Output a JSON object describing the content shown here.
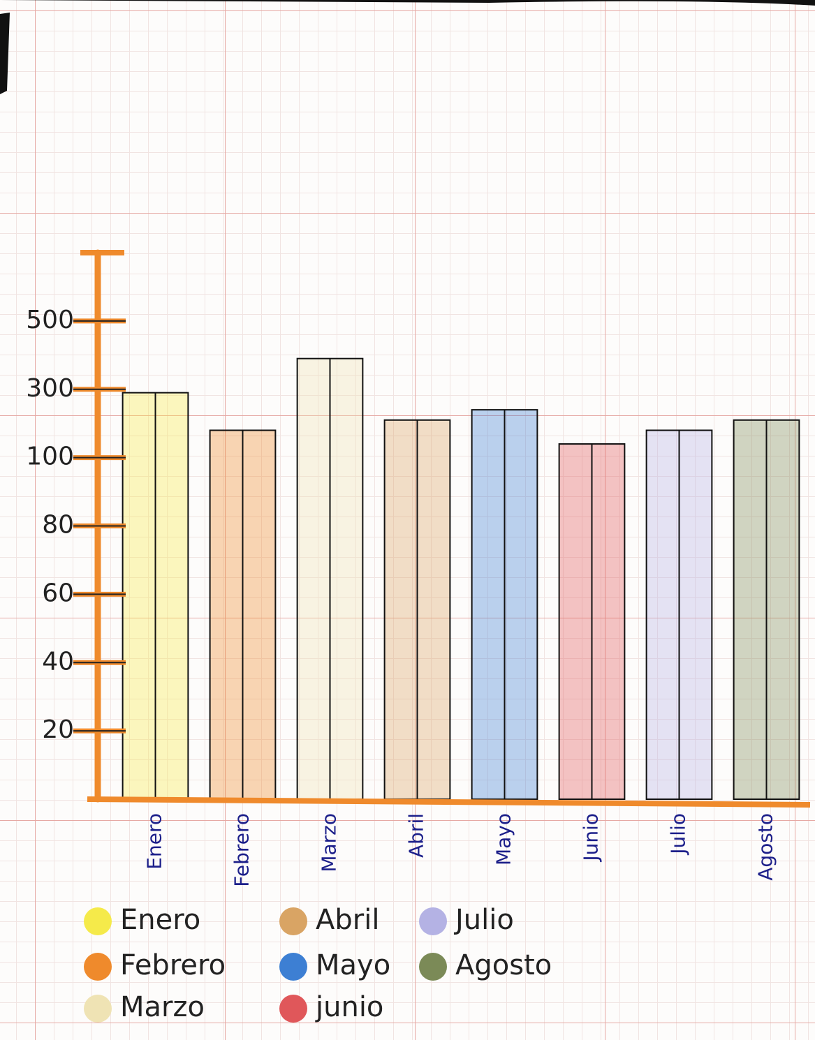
{
  "chart_data": {
    "type": "bar",
    "categories": [
      "Enero",
      "Febrero",
      "Marzo",
      "Abril",
      "Mayo",
      "Junio",
      "Julio",
      "Agosto"
    ],
    "values": [
      290,
      180,
      390,
      210,
      240,
      140,
      180,
      210
    ],
    "ylim": [
      0,
      700
    ],
    "yticks": [
      20,
      40,
      60,
      80,
      100,
      300,
      500
    ],
    "legend": [
      {
        "name": "Enero",
        "color": "#f5ea4a"
      },
      {
        "name": "Febrero",
        "color": "#ef8a2c"
      },
      {
        "name": "Marzo",
        "color": "#efe3b4"
      },
      {
        "name": "Abril",
        "color": "#d9a464"
      },
      {
        "name": "Mayo",
        "color": "#3d7fd3"
      },
      {
        "name": "junio",
        "color": "#e0575a"
      },
      {
        "name": "Julio",
        "color": "#b4b2e4"
      },
      {
        "name": "Agosto",
        "color": "#7b8a57"
      }
    ]
  }
}
